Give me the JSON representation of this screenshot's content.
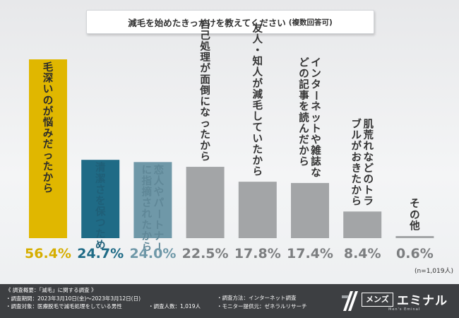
{
  "title": {
    "main": "減毛を始めたきっかけを教えてください",
    "suffix": "(複数回答可)"
  },
  "sample_note": "(n=1,019人)",
  "footer": {
    "lines_left": [
      "《 調査概要：「減毛」に関する調査 》",
      "・調査期間：2023年3月10日(金)～2023年3月12日(日)",
      "・調査対象：医療脱毛で減毛処理をしている男性"
    ],
    "people": "・調査人数：1,019人",
    "method": "・調査方法：インターネット調査",
    "provider": "・モニター提供元：ゼネラルリサーチ"
  },
  "logo": {
    "box_text": "メンズ",
    "big_text": "エミナル",
    "sub_text": "Men's Eminal"
  },
  "chart_data": {
    "type": "bar",
    "categories": [
      "毛深いのが悩みだったから",
      "清潔さを保つため",
      "恋人やパートナーに指摘されたから",
      "自己処理が面倒になったから",
      "友人・知人が減毛していたから",
      "インターネットや雑誌などの記事を読んだから",
      "肌荒れなどのトラブルがおきたから",
      "その他"
    ],
    "values": [
      56.4,
      24.7,
      24.0,
      22.5,
      17.8,
      17.4,
      8.4,
      0.6
    ],
    "value_labels": [
      "56.4%",
      "24.7%",
      "24.0%",
      "22.5%",
      "17.8%",
      "17.4%",
      "8.4%",
      "0.6%"
    ],
    "unit": "%",
    "ylim": [
      0,
      56.4
    ],
    "colors": [
      "#e0b700",
      "#1f6b86",
      "#6f98a8",
      "#a3a5a7",
      "#a3a5a7",
      "#a3a5a7",
      "#a3a5a7",
      "#a3a5a7"
    ],
    "label_colors": [
      "#d6ae00",
      "#1f6b86",
      "#6f98a8",
      "#7c7e80",
      "#7c7e80",
      "#7c7e80",
      "#7c7e80",
      "#7c7e80"
    ],
    "bar_text_colors": [
      "#2b2b2b",
      "#1f5f78",
      "#5f8797",
      "#333333",
      "#333333",
      "#333333",
      "#333333",
      "#333333"
    ]
  }
}
